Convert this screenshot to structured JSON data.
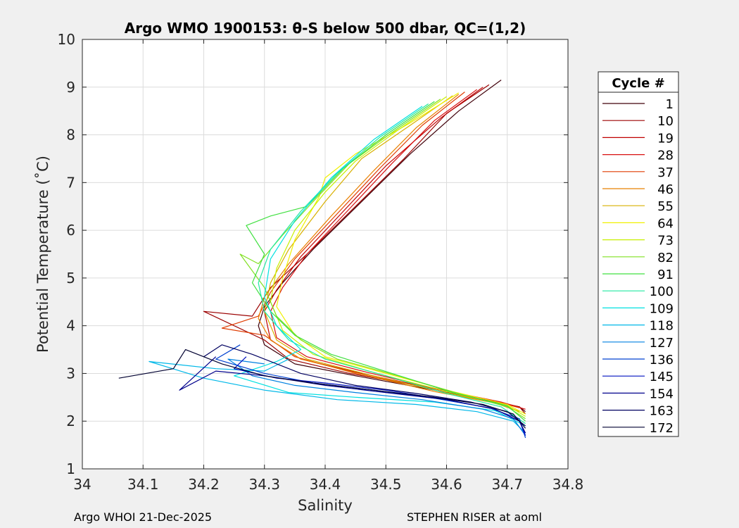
{
  "chart_data": {
    "type": "line",
    "title": "Argo WMO 1900153: θ-S below 500 dbar,  QC=(1,2)",
    "xlabel": "Salinity",
    "ylabel": "Potential Temperature (˚C)",
    "xlim": [
      34.0,
      34.8
    ],
    "ylim": [
      1,
      10
    ],
    "xticks": [
      "34",
      "34.1",
      "34.2",
      "34.3",
      "34.4",
      "34.5",
      "34.6",
      "34.7",
      "34.8"
    ],
    "yticks": [
      "1",
      "2",
      "3",
      "4",
      "5",
      "6",
      "7",
      "8",
      "9",
      "10"
    ],
    "grid": true,
    "legend": {
      "title": "Cycle #",
      "placement": "right",
      "entries": [
        {
          "label": "1",
          "color": "#40000a"
        },
        {
          "label": "10",
          "color": "#9b0000"
        },
        {
          "label": "19",
          "color": "#c00000"
        },
        {
          "label": "28",
          "color": "#d81010"
        },
        {
          "label": "37",
          "color": "#e03c00"
        },
        {
          "label": "46",
          "color": "#e88000"
        },
        {
          "label": "55",
          "color": "#d8b000"
        },
        {
          "label": "64",
          "color": "#f0f000"
        },
        {
          "label": "73",
          "color": "#c8f000"
        },
        {
          "label": "82",
          "color": "#80e020"
        },
        {
          "label": "91",
          "color": "#40e040"
        },
        {
          "label": "100",
          "color": "#20e8a0"
        },
        {
          "label": "109",
          "color": "#00e0e0"
        },
        {
          "label": "118",
          "color": "#00b8e8"
        },
        {
          "label": "127",
          "color": "#0080e0"
        },
        {
          "label": "136",
          "color": "#0040d0"
        },
        {
          "label": "145",
          "color": "#0010c0"
        },
        {
          "label": "154",
          "color": "#00008c"
        },
        {
          "label": "163",
          "color": "#000060"
        },
        {
          "label": "172",
          "color": "#000030"
        }
      ]
    },
    "series": [
      {
        "name": "1",
        "color": "#40000a",
        "points": [
          [
            34.69,
            9.15
          ],
          [
            34.62,
            8.5
          ],
          [
            34.54,
            7.6
          ],
          [
            34.46,
            6.6
          ],
          [
            34.38,
            5.6
          ],
          [
            34.33,
            4.9
          ],
          [
            34.3,
            4.4
          ],
          [
            34.29,
            4.0
          ],
          [
            34.3,
            3.6
          ],
          [
            34.35,
            3.2
          ],
          [
            34.45,
            2.95
          ],
          [
            34.58,
            2.65
          ],
          [
            34.68,
            2.4
          ],
          [
            34.72,
            2.3
          ],
          [
            34.73,
            2.2
          ]
        ]
      },
      {
        "name": "10",
        "color": "#9b0000",
        "points": [
          [
            34.67,
            9.05
          ],
          [
            34.6,
            8.45
          ],
          [
            34.53,
            7.5
          ],
          [
            34.45,
            6.5
          ],
          [
            34.37,
            5.5
          ],
          [
            34.31,
            4.8
          ],
          [
            34.28,
            4.2
          ],
          [
            34.2,
            4.3
          ],
          [
            34.3,
            3.7
          ],
          [
            34.34,
            3.3
          ],
          [
            34.44,
            3.0
          ],
          [
            34.57,
            2.7
          ],
          [
            34.67,
            2.45
          ],
          [
            34.72,
            2.3
          ],
          [
            34.73,
            2.15
          ]
        ]
      },
      {
        "name": "19",
        "color": "#c00000",
        "points": [
          [
            34.66,
            9.0
          ],
          [
            34.59,
            8.35
          ],
          [
            34.5,
            7.35
          ],
          [
            34.43,
            6.4
          ],
          [
            34.36,
            5.45
          ],
          [
            34.32,
            4.75
          ],
          [
            34.3,
            4.3
          ],
          [
            34.31,
            3.7
          ],
          [
            34.36,
            3.3
          ],
          [
            34.46,
            3.0
          ],
          [
            34.58,
            2.68
          ],
          [
            34.68,
            2.42
          ],
          [
            34.72,
            2.28
          ]
        ]
      },
      {
        "name": "28",
        "color": "#d81010",
        "points": [
          [
            34.65,
            8.95
          ],
          [
            34.58,
            8.3
          ],
          [
            34.51,
            7.4
          ],
          [
            34.44,
            6.45
          ],
          [
            34.37,
            5.5
          ],
          [
            34.33,
            4.8
          ],
          [
            34.31,
            4.3
          ],
          [
            34.32,
            3.75
          ],
          [
            34.37,
            3.35
          ],
          [
            34.47,
            3.02
          ],
          [
            34.59,
            2.66
          ],
          [
            34.69,
            2.4
          ],
          [
            34.73,
            2.25
          ]
        ]
      },
      {
        "name": "37",
        "color": "#e03c00",
        "points": [
          [
            34.63,
            8.9
          ],
          [
            34.56,
            8.2
          ],
          [
            34.49,
            7.3
          ],
          [
            34.42,
            6.35
          ],
          [
            34.35,
            5.4
          ],
          [
            34.31,
            4.7
          ],
          [
            34.29,
            4.2
          ],
          [
            34.23,
            3.95
          ],
          [
            34.3,
            3.8
          ],
          [
            34.35,
            3.35
          ],
          [
            34.45,
            3.0
          ],
          [
            34.57,
            2.7
          ],
          [
            34.67,
            2.45
          ],
          [
            34.72,
            2.28
          ]
        ]
      },
      {
        "name": "46",
        "color": "#e88000",
        "points": [
          [
            34.62,
            8.85
          ],
          [
            34.55,
            8.15
          ],
          [
            34.48,
            7.25
          ],
          [
            34.41,
            6.3
          ],
          [
            34.34,
            5.3
          ],
          [
            34.3,
            4.6
          ],
          [
            34.29,
            4.15
          ],
          [
            34.31,
            3.7
          ],
          [
            34.36,
            3.3
          ],
          [
            34.46,
            2.98
          ],
          [
            34.58,
            2.62
          ],
          [
            34.68,
            2.38
          ],
          [
            34.72,
            2.2
          ]
        ]
      },
      {
        "name": "55",
        "color": "#d8b000",
        "points": [
          [
            34.61,
            8.82
          ],
          [
            34.54,
            8.2
          ],
          [
            34.46,
            7.5
          ],
          [
            34.4,
            6.6
          ],
          [
            34.34,
            5.6
          ],
          [
            34.31,
            4.9
          ],
          [
            34.3,
            4.3
          ],
          [
            34.32,
            3.7
          ],
          [
            34.37,
            3.3
          ],
          [
            34.47,
            2.98
          ],
          [
            34.59,
            2.62
          ],
          [
            34.69,
            2.36
          ],
          [
            34.72,
            2.2
          ]
        ]
      },
      {
        "name": "64",
        "color": "#f0f000",
        "points": [
          [
            34.62,
            8.88
          ],
          [
            34.54,
            8.25
          ],
          [
            34.45,
            7.6
          ],
          [
            34.4,
            7.1
          ],
          [
            34.39,
            6.7
          ],
          [
            34.35,
            5.8
          ],
          [
            34.33,
            5.0
          ],
          [
            34.32,
            4.4
          ],
          [
            34.35,
            3.8
          ],
          [
            34.4,
            3.35
          ],
          [
            34.5,
            3.0
          ],
          [
            34.61,
            2.62
          ],
          [
            34.7,
            2.35
          ],
          [
            34.73,
            2.15
          ]
        ]
      },
      {
        "name": "73",
        "color": "#c8f000",
        "points": [
          [
            34.6,
            8.8
          ],
          [
            34.52,
            8.1
          ],
          [
            34.45,
            7.45
          ],
          [
            34.4,
            6.8
          ],
          [
            34.35,
            6.0
          ],
          [
            34.32,
            5.2
          ],
          [
            34.31,
            4.5
          ],
          [
            34.33,
            3.9
          ],
          [
            34.38,
            3.4
          ],
          [
            34.48,
            3.02
          ],
          [
            34.6,
            2.62
          ],
          [
            34.7,
            2.33
          ],
          [
            34.73,
            2.1
          ]
        ]
      },
      {
        "name": "82",
        "color": "#80e020",
        "points": [
          [
            34.59,
            8.75
          ],
          [
            34.51,
            8.05
          ],
          [
            34.44,
            7.4
          ],
          [
            34.38,
            6.6
          ],
          [
            34.33,
            5.9
          ],
          [
            34.29,
            5.3
          ],
          [
            34.26,
            5.5
          ],
          [
            34.3,
            4.8
          ],
          [
            34.32,
            4.2
          ],
          [
            34.36,
            3.7
          ],
          [
            34.42,
            3.3
          ],
          [
            34.52,
            2.95
          ],
          [
            34.62,
            2.58
          ],
          [
            34.7,
            2.3
          ],
          [
            34.73,
            2.05
          ]
        ]
      },
      {
        "name": "91",
        "color": "#40e040",
        "points": [
          [
            34.58,
            8.7
          ],
          [
            34.5,
            8.0
          ],
          [
            34.43,
            7.3
          ],
          [
            34.37,
            6.5
          ],
          [
            34.31,
            6.3
          ],
          [
            34.27,
            6.1
          ],
          [
            34.3,
            5.5
          ],
          [
            34.28,
            4.9
          ],
          [
            34.31,
            4.3
          ],
          [
            34.35,
            3.8
          ],
          [
            34.41,
            3.4
          ],
          [
            34.51,
            3.0
          ],
          [
            34.61,
            2.6
          ],
          [
            34.7,
            2.32
          ],
          [
            34.73,
            2.0
          ]
        ]
      },
      {
        "name": "100",
        "color": "#20e8a0",
        "points": [
          [
            34.57,
            8.65
          ],
          [
            34.49,
            7.95
          ],
          [
            34.42,
            7.2
          ],
          [
            34.36,
            6.4
          ],
          [
            34.31,
            5.6
          ],
          [
            34.29,
            4.9
          ],
          [
            34.3,
            4.3
          ],
          [
            34.34,
            3.7
          ],
          [
            34.4,
            3.3
          ],
          [
            34.5,
            2.95
          ],
          [
            34.6,
            2.58
          ],
          [
            34.69,
            2.3
          ],
          [
            34.73,
            1.95
          ]
        ]
      },
      {
        "name": "109",
        "color": "#00e0e0",
        "points": [
          [
            34.56,
            8.6
          ],
          [
            34.48,
            7.9
          ],
          [
            34.41,
            7.1
          ],
          [
            34.35,
            6.2
          ],
          [
            34.31,
            5.4
          ],
          [
            34.3,
            4.6
          ],
          [
            34.32,
            4.0
          ],
          [
            34.36,
            3.5
          ],
          [
            34.32,
            3.25
          ],
          [
            34.25,
            2.95
          ],
          [
            34.34,
            2.6
          ],
          [
            34.45,
            2.5
          ],
          [
            34.58,
            2.4
          ],
          [
            34.68,
            2.22
          ],
          [
            34.73,
            1.9
          ]
        ]
      },
      {
        "name": "118",
        "color": "#00b8e8",
        "points": [
          [
            34.34,
            3.3
          ],
          [
            34.3,
            3.05
          ],
          [
            34.22,
            3.1
          ],
          [
            34.11,
            3.25
          ],
          [
            34.2,
            2.9
          ],
          [
            34.3,
            2.65
          ],
          [
            34.42,
            2.45
          ],
          [
            34.55,
            2.35
          ],
          [
            34.65,
            2.2
          ],
          [
            34.71,
            2.0
          ],
          [
            34.73,
            1.75
          ]
        ]
      },
      {
        "name": "127",
        "color": "#0080e0",
        "points": [
          [
            34.3,
            3.2
          ],
          [
            34.24,
            3.3
          ],
          [
            34.28,
            2.95
          ],
          [
            34.35,
            2.75
          ],
          [
            34.45,
            2.6
          ],
          [
            34.56,
            2.45
          ],
          [
            34.66,
            2.25
          ],
          [
            34.71,
            2.05
          ],
          [
            34.73,
            1.7
          ]
        ]
      },
      {
        "name": "136",
        "color": "#0040d0",
        "points": [
          [
            34.26,
            3.6
          ],
          [
            34.22,
            3.3
          ],
          [
            34.3,
            3.0
          ],
          [
            34.38,
            2.8
          ],
          [
            34.48,
            2.65
          ],
          [
            34.58,
            2.48
          ],
          [
            34.67,
            2.28
          ],
          [
            34.72,
            2.05
          ],
          [
            34.73,
            1.65
          ]
        ]
      },
      {
        "name": "145",
        "color": "#0010c0",
        "points": [
          [
            34.27,
            3.35
          ],
          [
            34.25,
            3.1
          ],
          [
            34.32,
            2.9
          ],
          [
            34.4,
            2.8
          ],
          [
            34.5,
            2.65
          ],
          [
            34.6,
            2.45
          ],
          [
            34.68,
            2.25
          ],
          [
            34.72,
            2.0
          ],
          [
            34.73,
            1.7
          ]
        ]
      },
      {
        "name": "154",
        "color": "#00008c",
        "points": [
          [
            34.22,
            3.35
          ],
          [
            34.16,
            2.65
          ],
          [
            34.22,
            3.05
          ],
          [
            34.3,
            2.95
          ],
          [
            34.4,
            2.75
          ],
          [
            34.5,
            2.6
          ],
          [
            34.6,
            2.45
          ],
          [
            34.68,
            2.25
          ],
          [
            34.72,
            2.0
          ],
          [
            34.73,
            1.75
          ]
        ]
      },
      {
        "name": "163",
        "color": "#000060",
        "points": [
          [
            34.2,
            3.35
          ],
          [
            34.23,
            3.6
          ],
          [
            34.28,
            3.4
          ],
          [
            34.36,
            3.0
          ],
          [
            34.45,
            2.75
          ],
          [
            34.55,
            2.58
          ],
          [
            34.64,
            2.4
          ],
          [
            34.7,
            2.2
          ],
          [
            34.73,
            1.9
          ]
        ]
      },
      {
        "name": "172",
        "color": "#000030",
        "points": [
          [
            34.06,
            2.9
          ],
          [
            34.15,
            3.1
          ],
          [
            34.17,
            3.5
          ],
          [
            34.23,
            3.2
          ],
          [
            34.3,
            2.95
          ],
          [
            34.38,
            2.8
          ],
          [
            34.48,
            2.65
          ],
          [
            34.58,
            2.5
          ],
          [
            34.66,
            2.35
          ],
          [
            34.71,
            2.15
          ],
          [
            34.73,
            1.85
          ]
        ]
      }
    ]
  },
  "footer": {
    "left": "Argo WHOI 21-Dec-2025",
    "right": "STEPHEN RISER at aoml"
  }
}
